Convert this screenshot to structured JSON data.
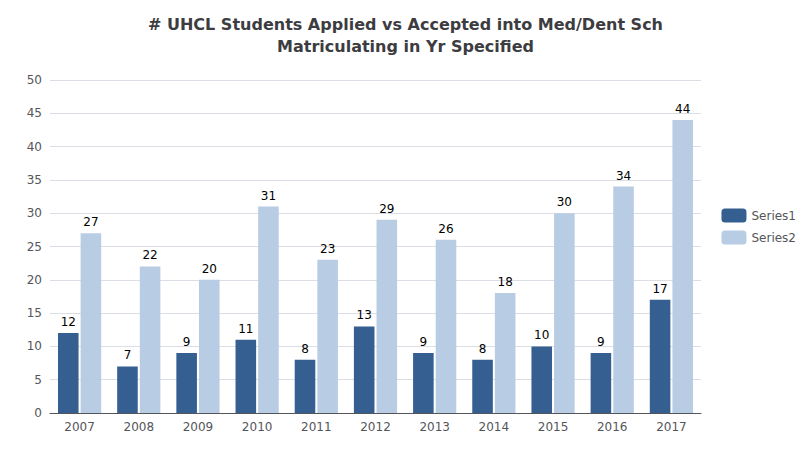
{
  "chart_data": {
    "type": "bar",
    "title": "# UHCL Students Applied vs Accepted into Med/Dent Sch\nMatriculating in Yr Specified",
    "categories": [
      "2007",
      "2008",
      "2009",
      "2010",
      "2011",
      "2012",
      "2013",
      "2014",
      "2015",
      "2016",
      "2017"
    ],
    "series": [
      {
        "name": "Series1",
        "color": "#365f91",
        "values": [
          12,
          7,
          9,
          11,
          8,
          13,
          9,
          8,
          10,
          9,
          17
        ]
      },
      {
        "name": "Series2",
        "color": "#b8cce4",
        "values": [
          27,
          22,
          20,
          31,
          23,
          29,
          26,
          18,
          30,
          34,
          44
        ]
      }
    ],
    "ylim": [
      0,
      50
    ],
    "yticks": [
      0,
      5,
      10,
      15,
      20,
      25,
      30,
      35,
      40,
      45,
      50
    ],
    "grid": true,
    "legend": "right",
    "data_labels": true
  }
}
